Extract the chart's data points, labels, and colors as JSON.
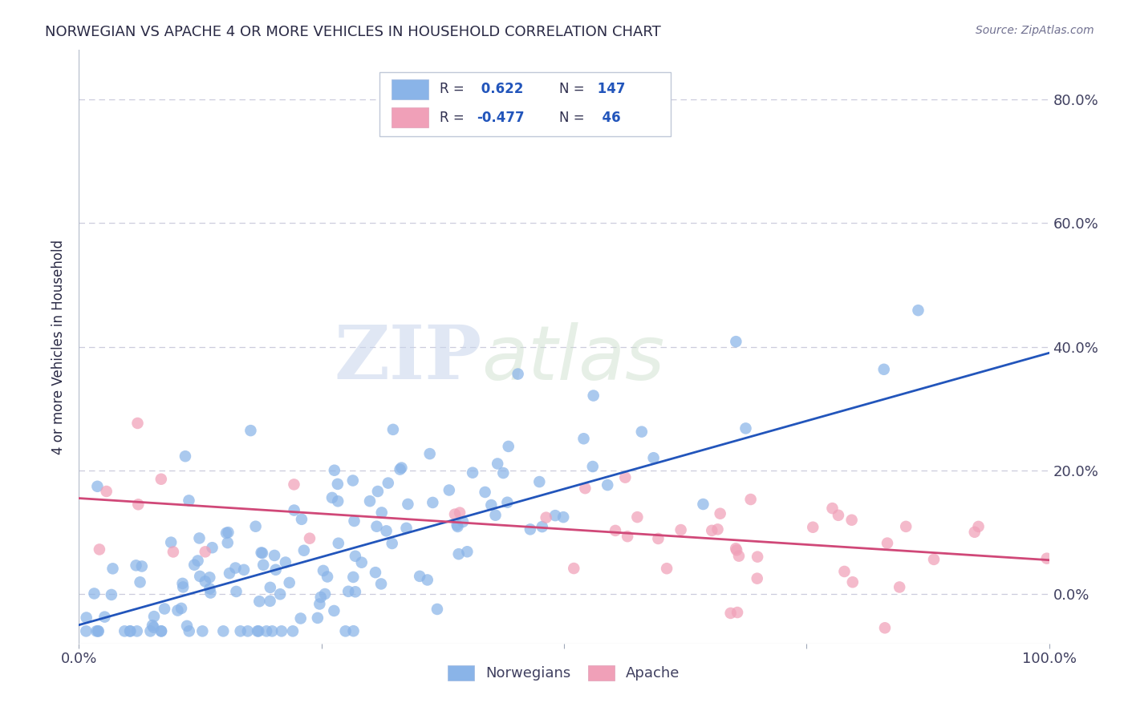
{
  "title": "NORWEGIAN VS APACHE 4 OR MORE VEHICLES IN HOUSEHOLD CORRELATION CHART",
  "source": "Source: ZipAtlas.com",
  "ylabel": "4 or more Vehicles in Household",
  "watermark_zip": "ZIP",
  "watermark_atlas": "atlas",
  "xlim": [
    0.0,
    1.0
  ],
  "ylim": [
    -0.08,
    0.88
  ],
  "xtick_vals": [
    0.0,
    0.25,
    0.5,
    0.75,
    1.0
  ],
  "xtick_labels": [
    "0.0%",
    "",
    "",
    "",
    "100.0%"
  ],
  "ytick_vals": [
    0.0,
    0.2,
    0.4,
    0.6,
    0.8
  ],
  "ytick_labels": [
    "0.0%",
    "20.0%",
    "40.0%",
    "60.0%",
    "80.0%"
  ],
  "blue_R": "0.622",
  "blue_N": "147",
  "pink_R": "-0.477",
  "pink_N": "46",
  "blue_color": "#8ab4e8",
  "blue_line_color": "#2255bb",
  "pink_color": "#f0a0b8",
  "pink_line_color": "#d04878",
  "background_color": "#ffffff",
  "grid_color": "#ccccdd",
  "title_color": "#2a2a45",
  "source_color": "#707090",
  "label_color": "#404060",
  "blue_val_color": "#2255bb",
  "blue_slope": 0.44,
  "blue_intercept": -0.05,
  "pink_slope": -0.1,
  "pink_intercept": 0.155,
  "seed_blue": 42,
  "seed_pink": 123
}
